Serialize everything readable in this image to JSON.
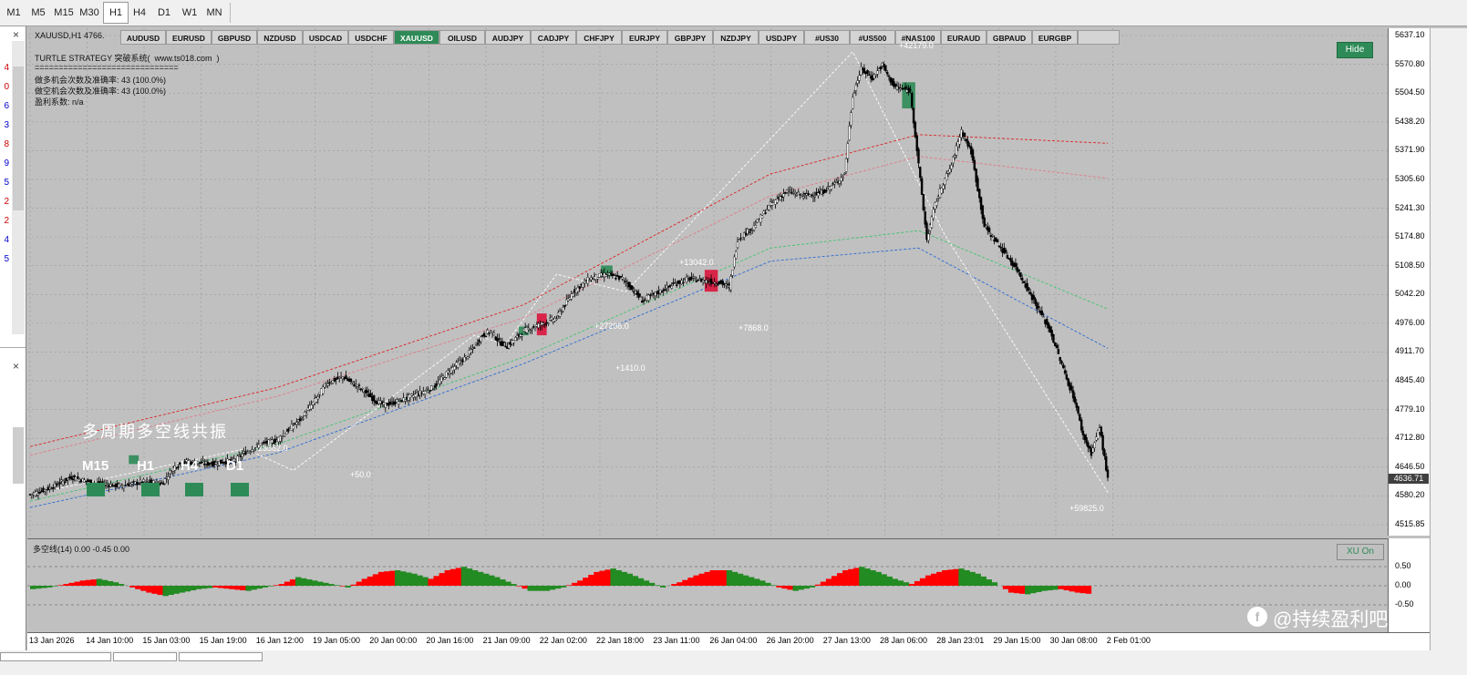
{
  "timeframes": [
    "M1",
    "M5",
    "M15",
    "M30",
    "H1",
    "H4",
    "D1",
    "W1",
    "MN"
  ],
  "active_timeframe": "H1",
  "left_panel": {
    "digits": [
      "4",
      "0",
      "6",
      "3",
      "8",
      "9",
      "5",
      "2",
      "2",
      "4",
      "5"
    ]
  },
  "chart_title": "XAUUSD,H1  4766.",
  "symbols": [
    "AUDUSD",
    "EURUSD",
    "GBPUSD",
    "NZDUSD",
    "USDCAD",
    "USDCHF",
    "XAUUSD",
    "OILUSD",
    "AUDJPY",
    "CADJPY",
    "CHFJPY",
    "EURJPY",
    "GBPJPY",
    "NZDJPY",
    "USDJPY",
    "#US30",
    "#US500",
    "#NAS100",
    "EURAUD",
    "GBPAUD",
    "EURGBP"
  ],
  "active_symbol": "XAUUSD",
  "info": {
    "line1": "TURTLE STRATEGY 突破系统(  www.ts018.com  )",
    "line2": "==============================",
    "line3": "做多机会次数及准确率: 43 (100.0%)",
    "line4": "做空机会次数及准确率: 43 (100.0%)",
    "line5": "盈利系数: n/a"
  },
  "hide_label": "Hide",
  "price_ticks": [
    "5637.10",
    "5570.80",
    "5504.50",
    "5438.20",
    "5371.90",
    "5305.60",
    "5241.30",
    "5174.80",
    "5108.50",
    "5042.20",
    "4976.00",
    "4911.70",
    "4845.40",
    "4779.10",
    "4712.80",
    "4646.50",
    "4580.20",
    "4515.85"
  ],
  "current_price": "4636.71",
  "mtf_title": "多周期多空线共振",
  "mtf_labels": [
    "M15",
    "H1",
    "H4",
    "D1"
  ],
  "annotations": [
    "-23662.0",
    "+50.0",
    "+27206.0",
    "+1410.0",
    "+13042.0",
    "+7868.0",
    "+42179.0",
    "+59825.0"
  ],
  "indicator": {
    "label": "多空线(14) 0.00 -0.45 0.00",
    "button": "XU On",
    "axis_ticks": [
      "0.50",
      "0.00",
      "-0.50"
    ]
  },
  "time_ticks": [
    "13 Jan 2026",
    "14 Jan 10:00",
    "15 Jan 03:00",
    "15 Jan 19:00",
    "16 Jan 12:00",
    "19 Jan 05:00",
    "20 Jan 00:00",
    "20 Jan 16:00",
    "21 Jan 09:00",
    "22 Jan 02:00",
    "22 Jan 18:00",
    "23 Jan 11:00",
    "26 Jan 04:00",
    "26 Jan 20:00",
    "27 Jan 13:00",
    "28 Jan 06:00",
    "28 Jan 23:01",
    "29 Jan 15:00",
    "30 Jan 08:00",
    "2 Feb 01:00"
  ],
  "watermark": "@持续盈利吧",
  "colors": {
    "bull": "#2e8b57",
    "bear": "#dc143c",
    "ind_up": "#ff0000",
    "ind_green": "#228b22"
  },
  "chart_data": {
    "type": "candlestick",
    "symbol": "XAUUSD",
    "timeframe": "H1",
    "ylim": [
      4515.85,
      5637.1
    ],
    "close_path": [
      [
        0,
        4585
      ],
      [
        12,
        4600
      ],
      [
        25,
        4625
      ],
      [
        40,
        4610
      ],
      [
        55,
        4605
      ],
      [
        70,
        4615
      ],
      [
        80,
        4610
      ],
      [
        88,
        4650
      ],
      [
        95,
        4660
      ],
      [
        110,
        4655
      ],
      [
        125,
        4665
      ],
      [
        130,
        4680
      ],
      [
        140,
        4700
      ],
      [
        150,
        4710
      ],
      [
        165,
        4760
      ],
      [
        175,
        4810
      ],
      [
        180,
        4840
      ],
      [
        190,
        4855
      ],
      [
        200,
        4830
      ],
      [
        210,
        4800
      ],
      [
        215,
        4790
      ],
      [
        225,
        4800
      ],
      [
        235,
        4815
      ],
      [
        245,
        4830
      ],
      [
        255,
        4870
      ],
      [
        265,
        4900
      ],
      [
        275,
        4950
      ],
      [
        280,
        4960
      ],
      [
        285,
        4935
      ],
      [
        290,
        4925
      ],
      [
        300,
        4960
      ],
      [
        310,
        4975
      ],
      [
        320,
        4990
      ],
      [
        330,
        5050
      ],
      [
        340,
        5080
      ],
      [
        350,
        5090
      ],
      [
        360,
        5080
      ],
      [
        365,
        5060
      ],
      [
        372,
        5030
      ],
      [
        380,
        5045
      ],
      [
        390,
        5065
      ],
      [
        400,
        5080
      ],
      [
        410,
        5075
      ],
      [
        420,
        5070
      ],
      [
        425,
        5060
      ],
      [
        430,
        5170
      ],
      [
        440,
        5200
      ],
      [
        450,
        5250
      ],
      [
        460,
        5280
      ],
      [
        470,
        5270
      ],
      [
        480,
        5275
      ],
      [
        490,
        5300
      ],
      [
        495,
        5320
      ],
      [
        500,
        5500
      ],
      [
        505,
        5560
      ],
      [
        512,
        5540
      ],
      [
        518,
        5570
      ],
      [
        525,
        5520
      ],
      [
        535,
        5510
      ],
      [
        545,
        5170
      ],
      [
        550,
        5250
      ],
      [
        555,
        5300
      ],
      [
        560,
        5340
      ],
      [
        566,
        5420
      ],
      [
        572,
        5370
      ],
      [
        580,
        5200
      ],
      [
        590,
        5150
      ],
      [
        600,
        5100
      ],
      [
        610,
        5030
      ],
      [
        620,
        4960
      ],
      [
        630,
        4850
      ],
      [
        635,
        4800
      ],
      [
        640,
        4720
      ],
      [
        645,
        4680
      ],
      [
        650,
        4740
      ],
      [
        655,
        4620
      ]
    ],
    "upper_channel": [
      [
        0,
        4695
      ],
      [
        150,
        4830
      ],
      [
        300,
        5020
      ],
      [
        450,
        5320
      ],
      [
        540,
        5410
      ],
      [
        655,
        5390
      ]
    ],
    "pink_channel": [
      [
        0,
        4675
      ],
      [
        150,
        4810
      ],
      [
        300,
        4990
      ],
      [
        450,
        5270
      ],
      [
        540,
        5360
      ],
      [
        655,
        5310
      ]
    ],
    "green_channel": [
      [
        0,
        4570
      ],
      [
        150,
        4700
      ],
      [
        300,
        4900
      ],
      [
        450,
        5150
      ],
      [
        540,
        5190
      ],
      [
        655,
        5010
      ]
    ],
    "blue_channel": [
      [
        0,
        4555
      ],
      [
        150,
        4680
      ],
      [
        300,
        4885
      ],
      [
        450,
        5120
      ],
      [
        540,
        5150
      ],
      [
        655,
        4920
      ]
    ],
    "trade_boxes": [
      {
        "side": "bull",
        "t": [
          60,
          66
        ],
        "p": [
          4655,
          4675
        ]
      },
      {
        "side": "bull",
        "t": [
          297,
          303
        ],
        "p": [
          4950,
          4970
        ]
      },
      {
        "side": "bear",
        "t": [
          308,
          314
        ],
        "p": [
          4950,
          5000
        ]
      },
      {
        "side": "bull",
        "t": [
          347,
          354
        ],
        "p": [
          5085,
          5110
        ]
      },
      {
        "side": "bear",
        "t": [
          410,
          418
        ],
        "p": [
          5050,
          5100
        ]
      },
      {
        "side": "bull",
        "t": [
          530,
          538
        ],
        "p": [
          5470,
          5530
        ]
      }
    ],
    "indicator_values": [
      -0.2,
      -0.1,
      0.1,
      0.3,
      0.4,
      0.2,
      -0.1,
      -0.4,
      -0.6,
      -0.4,
      -0.2,
      -0.1,
      -0.2,
      -0.3,
      -0.1,
      0.1,
      0.5,
      0.3,
      0.1,
      -0.1,
      0.4,
      0.8,
      0.9,
      0.7,
      0.4,
      0.9,
      1.1,
      0.8,
      0.5,
      0.1,
      -0.3,
      -0.3,
      -0.1,
      0.3,
      0.8,
      1.0,
      0.7,
      0.3,
      -0.1,
      0.2,
      0.6,
      0.9,
      0.9,
      0.6,
      0.3,
      -0.1,
      -0.3,
      -0.1,
      0.4,
      0.9,
      1.1,
      0.8,
      0.4,
      0.1,
      0.6,
      0.9,
      1.0,
      0.7,
      0.2,
      -0.4,
      -0.5,
      -0.3,
      -0.2,
      -0.4,
      -0.5
    ]
  }
}
